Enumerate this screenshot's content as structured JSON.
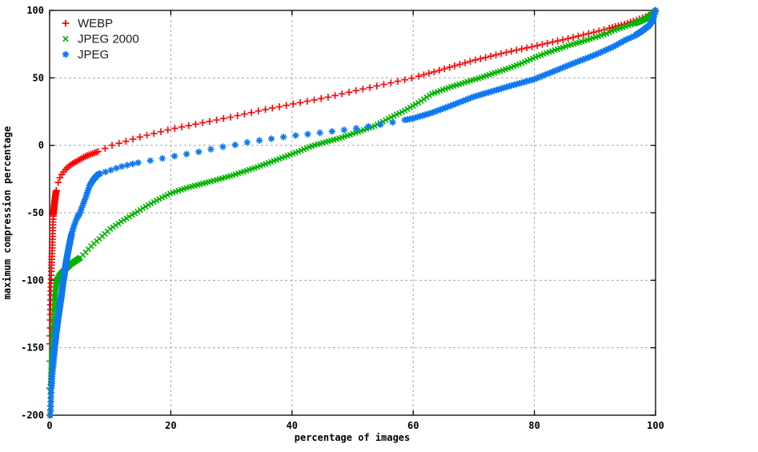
{
  "page": {
    "background": "#ffffff"
  },
  "chart_data": {
    "type": "scatter",
    "title": "",
    "xlabel": "percentage of images",
    "ylabel": "maximum compression percentage",
    "xlim": [
      0,
      100
    ],
    "ylim": [
      -200,
      100
    ],
    "xticks": [
      0,
      20,
      40,
      60,
      80,
      100
    ],
    "yticks": [
      -200,
      -150,
      -100,
      -50,
      0,
      50,
      100
    ],
    "grid": true,
    "grid_color": "#aaaaaa",
    "axis_color": "#000000",
    "text_color": "#000000",
    "legend": {
      "position": "top-left"
    },
    "series": [
      {
        "name": "WEBP",
        "color": "#ff0000",
        "marker": "plus",
        "points": [
          [
            0.02,
            -200
          ],
          [
            0.06,
            -150
          ],
          [
            0.12,
            -128
          ],
          [
            0.2,
            -110
          ],
          [
            0.3,
            -92
          ],
          [
            0.45,
            -72
          ],
          [
            0.6,
            -52
          ],
          [
            0.8,
            -43
          ],
          [
            1.0,
            -36
          ],
          [
            1.3,
            -29
          ],
          [
            1.6,
            -25
          ],
          [
            2.0,
            -21.5
          ],
          [
            2.6,
            -18
          ],
          [
            3.3,
            -15
          ],
          [
            4.0,
            -13
          ],
          [
            5.0,
            -10.5
          ],
          [
            6.0,
            -8
          ],
          [
            7.0,
            -6.3
          ],
          [
            8.0,
            -4.6
          ],
          [
            9.0,
            -2.6
          ],
          [
            10.3,
            0
          ],
          [
            12,
            2.2
          ],
          [
            15,
            6.3
          ],
          [
            20,
            12
          ],
          [
            25,
            16.5
          ],
          [
            30,
            21
          ],
          [
            35,
            26
          ],
          [
            40,
            30.5
          ],
          [
            45,
            34.8
          ],
          [
            47,
            36.8
          ],
          [
            50,
            40
          ],
          [
            55,
            45
          ],
          [
            60,
            50
          ],
          [
            65,
            56.5
          ],
          [
            70,
            63
          ],
          [
            75,
            68.5
          ],
          [
            80,
            73.5
          ],
          [
            85,
            78.5
          ],
          [
            90,
            84
          ],
          [
            93,
            87.5
          ],
          [
            95,
            90
          ],
          [
            97,
            93
          ],
          [
            98.5,
            95.5
          ],
          [
            99.5,
            98
          ],
          [
            100,
            100
          ]
        ],
        "marker_sampling": [
          {
            "to": 1.1,
            "step": 0.016
          },
          {
            "to": 8,
            "step": 0.3
          },
          {
            "to": 60,
            "step": 1.15
          },
          {
            "to": 92,
            "step": 0.85
          },
          {
            "to": 100,
            "step": 0.5
          }
        ]
      },
      {
        "name": "JPEG 2000",
        "color": "#00b400",
        "marker": "cross",
        "points": [
          [
            0.05,
            -200
          ],
          [
            0.12,
            -180
          ],
          [
            0.25,
            -165
          ],
          [
            0.4,
            -152
          ],
          [
            0.55,
            -140
          ],
          [
            0.7,
            -128
          ],
          [
            0.85,
            -115
          ],
          [
            1.0,
            -106
          ],
          [
            1.2,
            -100
          ],
          [
            1.6,
            -96.5
          ],
          [
            2.2,
            -93.5
          ],
          [
            2.8,
            -91
          ],
          [
            3.5,
            -88
          ],
          [
            4.5,
            -85
          ],
          [
            5,
            -83.5
          ],
          [
            6,
            -79
          ],
          [
            7,
            -74
          ],
          [
            8,
            -70
          ],
          [
            9,
            -66
          ],
          [
            10,
            -62
          ],
          [
            12,
            -56
          ],
          [
            14,
            -50.5
          ],
          [
            16,
            -45
          ],
          [
            18,
            -40
          ],
          [
            20,
            -35.5
          ],
          [
            23,
            -31
          ],
          [
            26,
            -27.5
          ],
          [
            30,
            -22.5
          ],
          [
            34,
            -16.5
          ],
          [
            37,
            -11.5
          ],
          [
            40,
            -6.5
          ],
          [
            43,
            -1
          ],
          [
            44,
            0.5
          ],
          [
            46,
            3
          ],
          [
            48,
            5.5
          ],
          [
            50,
            8.5
          ],
          [
            53.5,
            14
          ],
          [
            56,
            20
          ],
          [
            58.7,
            26
          ],
          [
            61,
            32
          ],
          [
            63,
            38
          ],
          [
            66,
            43
          ],
          [
            68.5,
            46.5
          ],
          [
            71,
            50
          ],
          [
            73,
            53
          ],
          [
            76,
            57.5
          ],
          [
            78,
            61
          ],
          [
            80,
            65
          ],
          [
            82,
            68.5
          ],
          [
            84,
            71.5
          ],
          [
            86,
            74.5
          ],
          [
            88,
            77
          ],
          [
            90,
            80
          ],
          [
            92,
            83
          ],
          [
            93,
            85
          ],
          [
            95,
            88
          ],
          [
            97,
            91
          ],
          [
            98.5,
            94
          ],
          [
            99.5,
            97.5
          ],
          [
            100,
            100
          ]
        ],
        "marker_sampling": [
          {
            "to": 1.3,
            "step": 0.02
          },
          {
            "to": 5,
            "step": 0.11
          },
          {
            "to": 96,
            "step": 0.45
          },
          {
            "to": 100,
            "step": 0.18
          }
        ]
      },
      {
        "name": "JPEG",
        "color": "#0d78f2",
        "marker": "star",
        "points": [
          [
            0.15,
            -200
          ],
          [
            0.3,
            -180
          ],
          [
            0.5,
            -166
          ],
          [
            0.7,
            -156
          ],
          [
            0.9,
            -147
          ],
          [
            1.1,
            -139
          ],
          [
            1.4,
            -128
          ],
          [
            1.7,
            -119
          ],
          [
            2.0,
            -110
          ],
          [
            2.2,
            -102
          ],
          [
            2.4,
            -97
          ],
          [
            2.6,
            -90
          ],
          [
            2.9,
            -82
          ],
          [
            3.2,
            -75
          ],
          [
            3.6,
            -66
          ],
          [
            4.0,
            -60
          ],
          [
            4.5,
            -54
          ],
          [
            5.0,
            -50
          ],
          [
            5.5,
            -44
          ],
          [
            6.0,
            -38
          ],
          [
            6.6,
            -30
          ],
          [
            7.2,
            -25.5
          ],
          [
            8.0,
            -21.5
          ],
          [
            10,
            -18.5
          ],
          [
            12,
            -15.5
          ],
          [
            15,
            -12.5
          ],
          [
            17,
            -11
          ],
          [
            20,
            -8.5
          ],
          [
            22,
            -7
          ],
          [
            25,
            -4.5
          ],
          [
            28,
            -1.5
          ],
          [
            30,
            -0.2
          ],
          [
            33,
            2.5
          ],
          [
            36,
            4.5
          ],
          [
            40,
            7
          ],
          [
            44,
            9
          ],
          [
            48,
            11
          ],
          [
            52,
            13.5
          ],
          [
            56,
            16.5
          ],
          [
            60,
            20
          ],
          [
            63,
            24
          ],
          [
            66,
            29
          ],
          [
            70,
            36
          ],
          [
            73,
            40
          ],
          [
            76,
            44
          ],
          [
            80,
            49
          ],
          [
            83,
            54.5
          ],
          [
            86,
            60
          ],
          [
            90,
            67
          ],
          [
            93,
            73
          ],
          [
            95,
            78
          ],
          [
            96.5,
            81
          ],
          [
            98,
            85.5
          ],
          [
            99,
            89
          ],
          [
            99.6,
            93
          ],
          [
            100,
            100
          ]
        ],
        "marker_sampling": [
          {
            "to": 3.6,
            "step": 0.025
          },
          {
            "to": 8.2,
            "step": 0.13
          },
          {
            "to": 14,
            "step": 0.9
          },
          {
            "to": 58,
            "step": 2.0
          },
          {
            "to": 96.8,
            "step": 0.42
          },
          {
            "to": 100,
            "step": 0.1
          }
        ]
      }
    ]
  }
}
